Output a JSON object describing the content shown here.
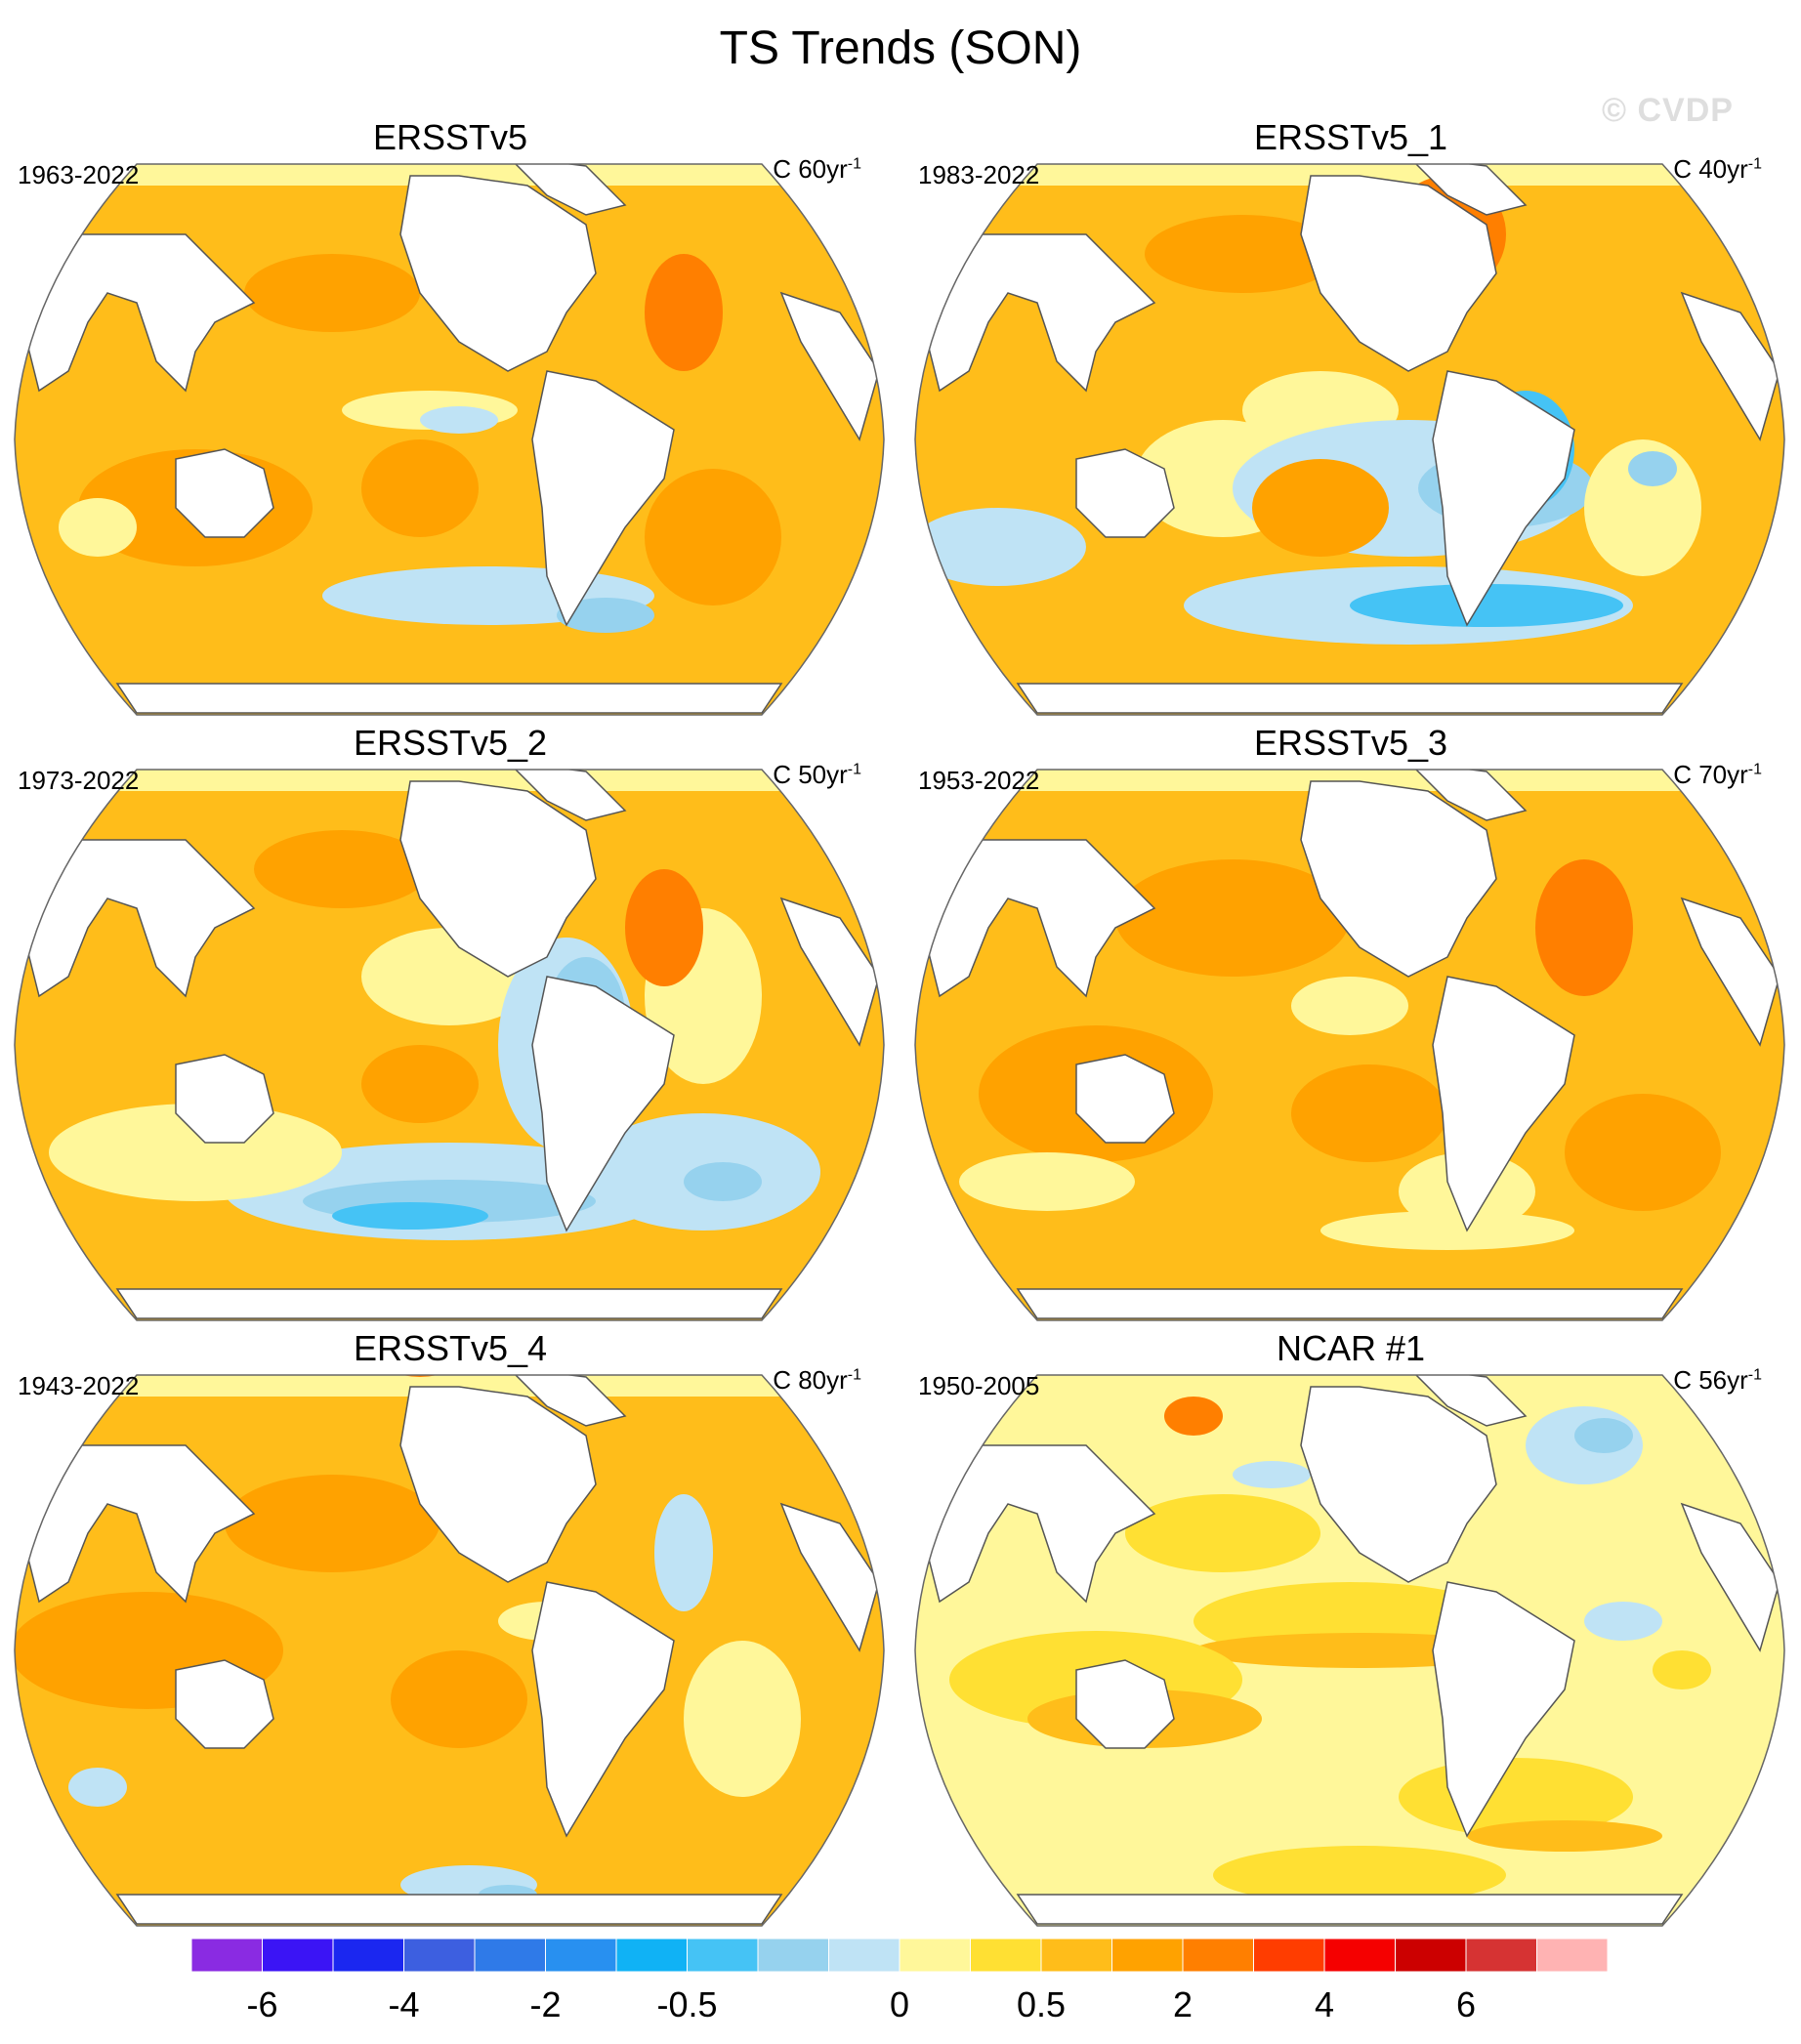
{
  "title": "TS Trends (SON)",
  "watermark": "© CVDP",
  "panels": [
    {
      "title": "ERSSTv5",
      "period": "1963-2022",
      "units_prefix": "C 60yr",
      "units_exp": "-1",
      "pattern": "p1"
    },
    {
      "title": "ERSSTv5_1",
      "period": "1983-2022",
      "units_prefix": "C 40yr",
      "units_exp": "-1",
      "pattern": "p2"
    },
    {
      "title": "ERSSTv5_2",
      "period": "1973-2022",
      "units_prefix": "C 50yr",
      "units_exp": "-1",
      "pattern": "p3"
    },
    {
      "title": "ERSSTv5_3",
      "period": "1953-2022",
      "units_prefix": "C 70yr",
      "units_exp": "-1",
      "pattern": "p4"
    },
    {
      "title": "ERSSTv5_4",
      "period": "1943-2022",
      "units_prefix": "C 80yr",
      "units_exp": "-1",
      "pattern": "p5"
    },
    {
      "title": "NCAR #1",
      "period": "1950-2005",
      "units_prefix": "C 56yr",
      "units_exp": "-1",
      "pattern": "p6"
    }
  ],
  "colorbar": {
    "colors": [
      "#8a2be2",
      "#3b14f5",
      "#1b27f0",
      "#3d5fe0",
      "#2f7ae8",
      "#2890f0",
      "#10b2f5",
      "#45c3f5",
      "#96d2ee",
      "#bfe3f5",
      "#fff79a",
      "#ffe033",
      "#ffbd1a",
      "#ffa200",
      "#ff7f00",
      "#ff3d00",
      "#f50000",
      "#cc0000",
      "#d63333",
      "#ffb3b3"
    ],
    "labels": [
      "-6",
      "-4",
      "-2",
      "-0.5",
      "0",
      "0.5",
      "2",
      "4",
      "6"
    ]
  }
}
